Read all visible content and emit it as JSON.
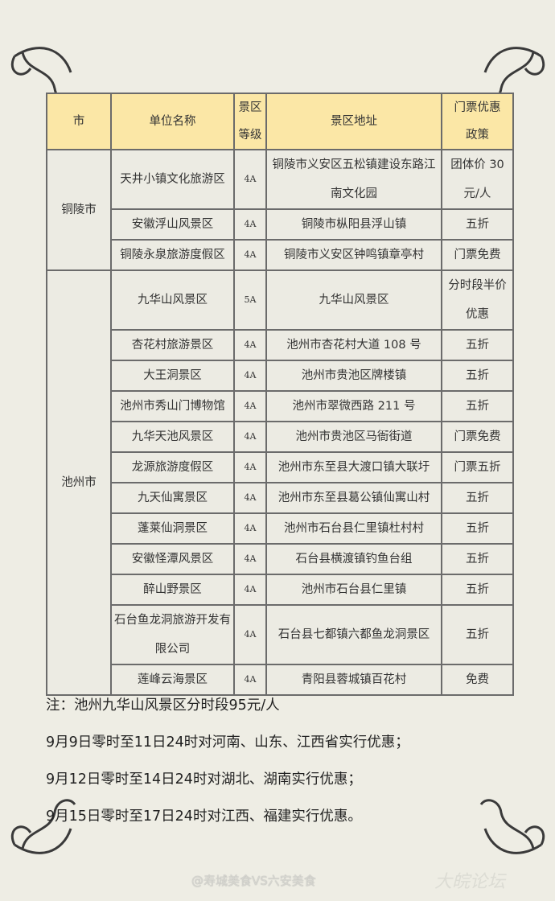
{
  "table": {
    "headers": [
      "市",
      "单位名称",
      "景区\n等级",
      "景区地址",
      "门票优惠\n政策"
    ],
    "groups": [
      {
        "city": "铜陵市",
        "rows": [
          {
            "name": "天井小镇文化旅游区",
            "grade": "4A",
            "address": "铜陵市义安区五松镇建设东路江南文化园",
            "policy": "团体价 30元/人"
          },
          {
            "name": "安徽浮山风景区",
            "grade": "4A",
            "address": "铜陵市枞阳县浮山镇",
            "policy": "五折"
          },
          {
            "name": "铜陵永泉旅游度假区",
            "grade": "4A",
            "address": "铜陵市义安区钟鸣镇章亭村",
            "policy": "门票免费"
          }
        ]
      },
      {
        "city": "池州市",
        "rows": [
          {
            "name": "九华山风景区",
            "grade": "5A",
            "address": "九华山风景区",
            "policy": "分时段半价优惠"
          },
          {
            "name": "杏花村旅游景区",
            "grade": "4A",
            "address": "池州市杏花村大道 108 号",
            "policy": "五折"
          },
          {
            "name": "大王洞景区",
            "grade": "4A",
            "address": "池州市贵池区牌楼镇",
            "policy": "五折"
          },
          {
            "name": "池州市秀山门博物馆",
            "grade": "4A",
            "address": "池州市翠微西路 211 号",
            "policy": "五折"
          },
          {
            "name": "九华天池风景区",
            "grade": "4A",
            "address": "池州市贵池区马衙街道",
            "policy": "门票免费"
          },
          {
            "name": "龙源旅游度假区",
            "grade": "4A",
            "address": "池州市东至县大渡口镇大联圩",
            "policy": "门票五折"
          },
          {
            "name": "九天仙寓景区",
            "grade": "4A",
            "address": "池州市东至县葛公镇仙寓山村",
            "policy": "五折"
          },
          {
            "name": "蓬莱仙洞景区",
            "grade": "4A",
            "address": "池州市石台县仁里镇杜村村",
            "policy": "五折"
          },
          {
            "name": "安徽怪潭风景区",
            "grade": "4A",
            "address": "石台县横渡镇钓鱼台组",
            "policy": "五折"
          },
          {
            "name": "醉山野景区",
            "grade": "4A",
            "address": "池州市石台县仁里镇",
            "policy": "五折"
          },
          {
            "name": "石台鱼龙洞旅游开发有限公司",
            "grade": "4A",
            "address": "石台县七都镇六都鱼龙洞景区",
            "policy": "五折"
          },
          {
            "name": "莲峰云海景区",
            "grade": "4A",
            "address": "青阳县蓉城镇百花村",
            "policy": "免费"
          }
        ]
      }
    ]
  },
  "notes": [
    "注：池州九华山风景区分时段95元/人",
    "9月9日零时至11日24时对河南、山东、江西省实行优惠；",
    "9月12日零时至14日24时对湖北、湖南实行优惠；",
    "9月15日零时至17日24时对江西、福建实行优惠。"
  ],
  "watermark": "@寿城美食VS六安美食",
  "watermark_logo": "大皖论坛",
  "colors": {
    "header": "#fbe7a6",
    "background": "#eeede4",
    "border": "#6b6b6b"
  }
}
